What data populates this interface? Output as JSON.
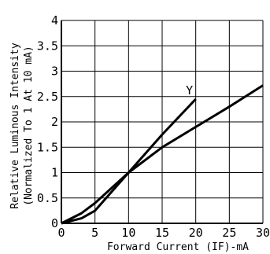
{
  "chart_data": {
    "type": "line",
    "xlabel": "Forward Current (IF)-mA",
    "ylabel": [
      "Relative Luminous Intensity",
      "(Normalized To 1 At 10 mA)"
    ],
    "xlim": [
      0,
      30
    ],
    "ylim": [
      0,
      4
    ],
    "x_ticks": [
      "0",
      "5",
      "10",
      "15",
      "20",
      "25",
      "30"
    ],
    "y_ticks": [
      "0",
      "0.5",
      "1",
      "1.5",
      "2",
      "2.5",
      "3",
      "3.5",
      "4"
    ],
    "grid": true,
    "series": [
      {
        "name": "Y",
        "x": [
          0,
          3,
          5,
          10,
          15,
          20
        ],
        "y": [
          0,
          0.1,
          0.25,
          1.0,
          1.75,
          2.45
        ]
      },
      {
        "name": "",
        "x": [
          0,
          3,
          5,
          10,
          15,
          20,
          25,
          30
        ],
        "y": [
          0,
          0.2,
          0.4,
          1.0,
          1.5,
          1.9,
          2.3,
          2.72
        ]
      }
    ]
  }
}
